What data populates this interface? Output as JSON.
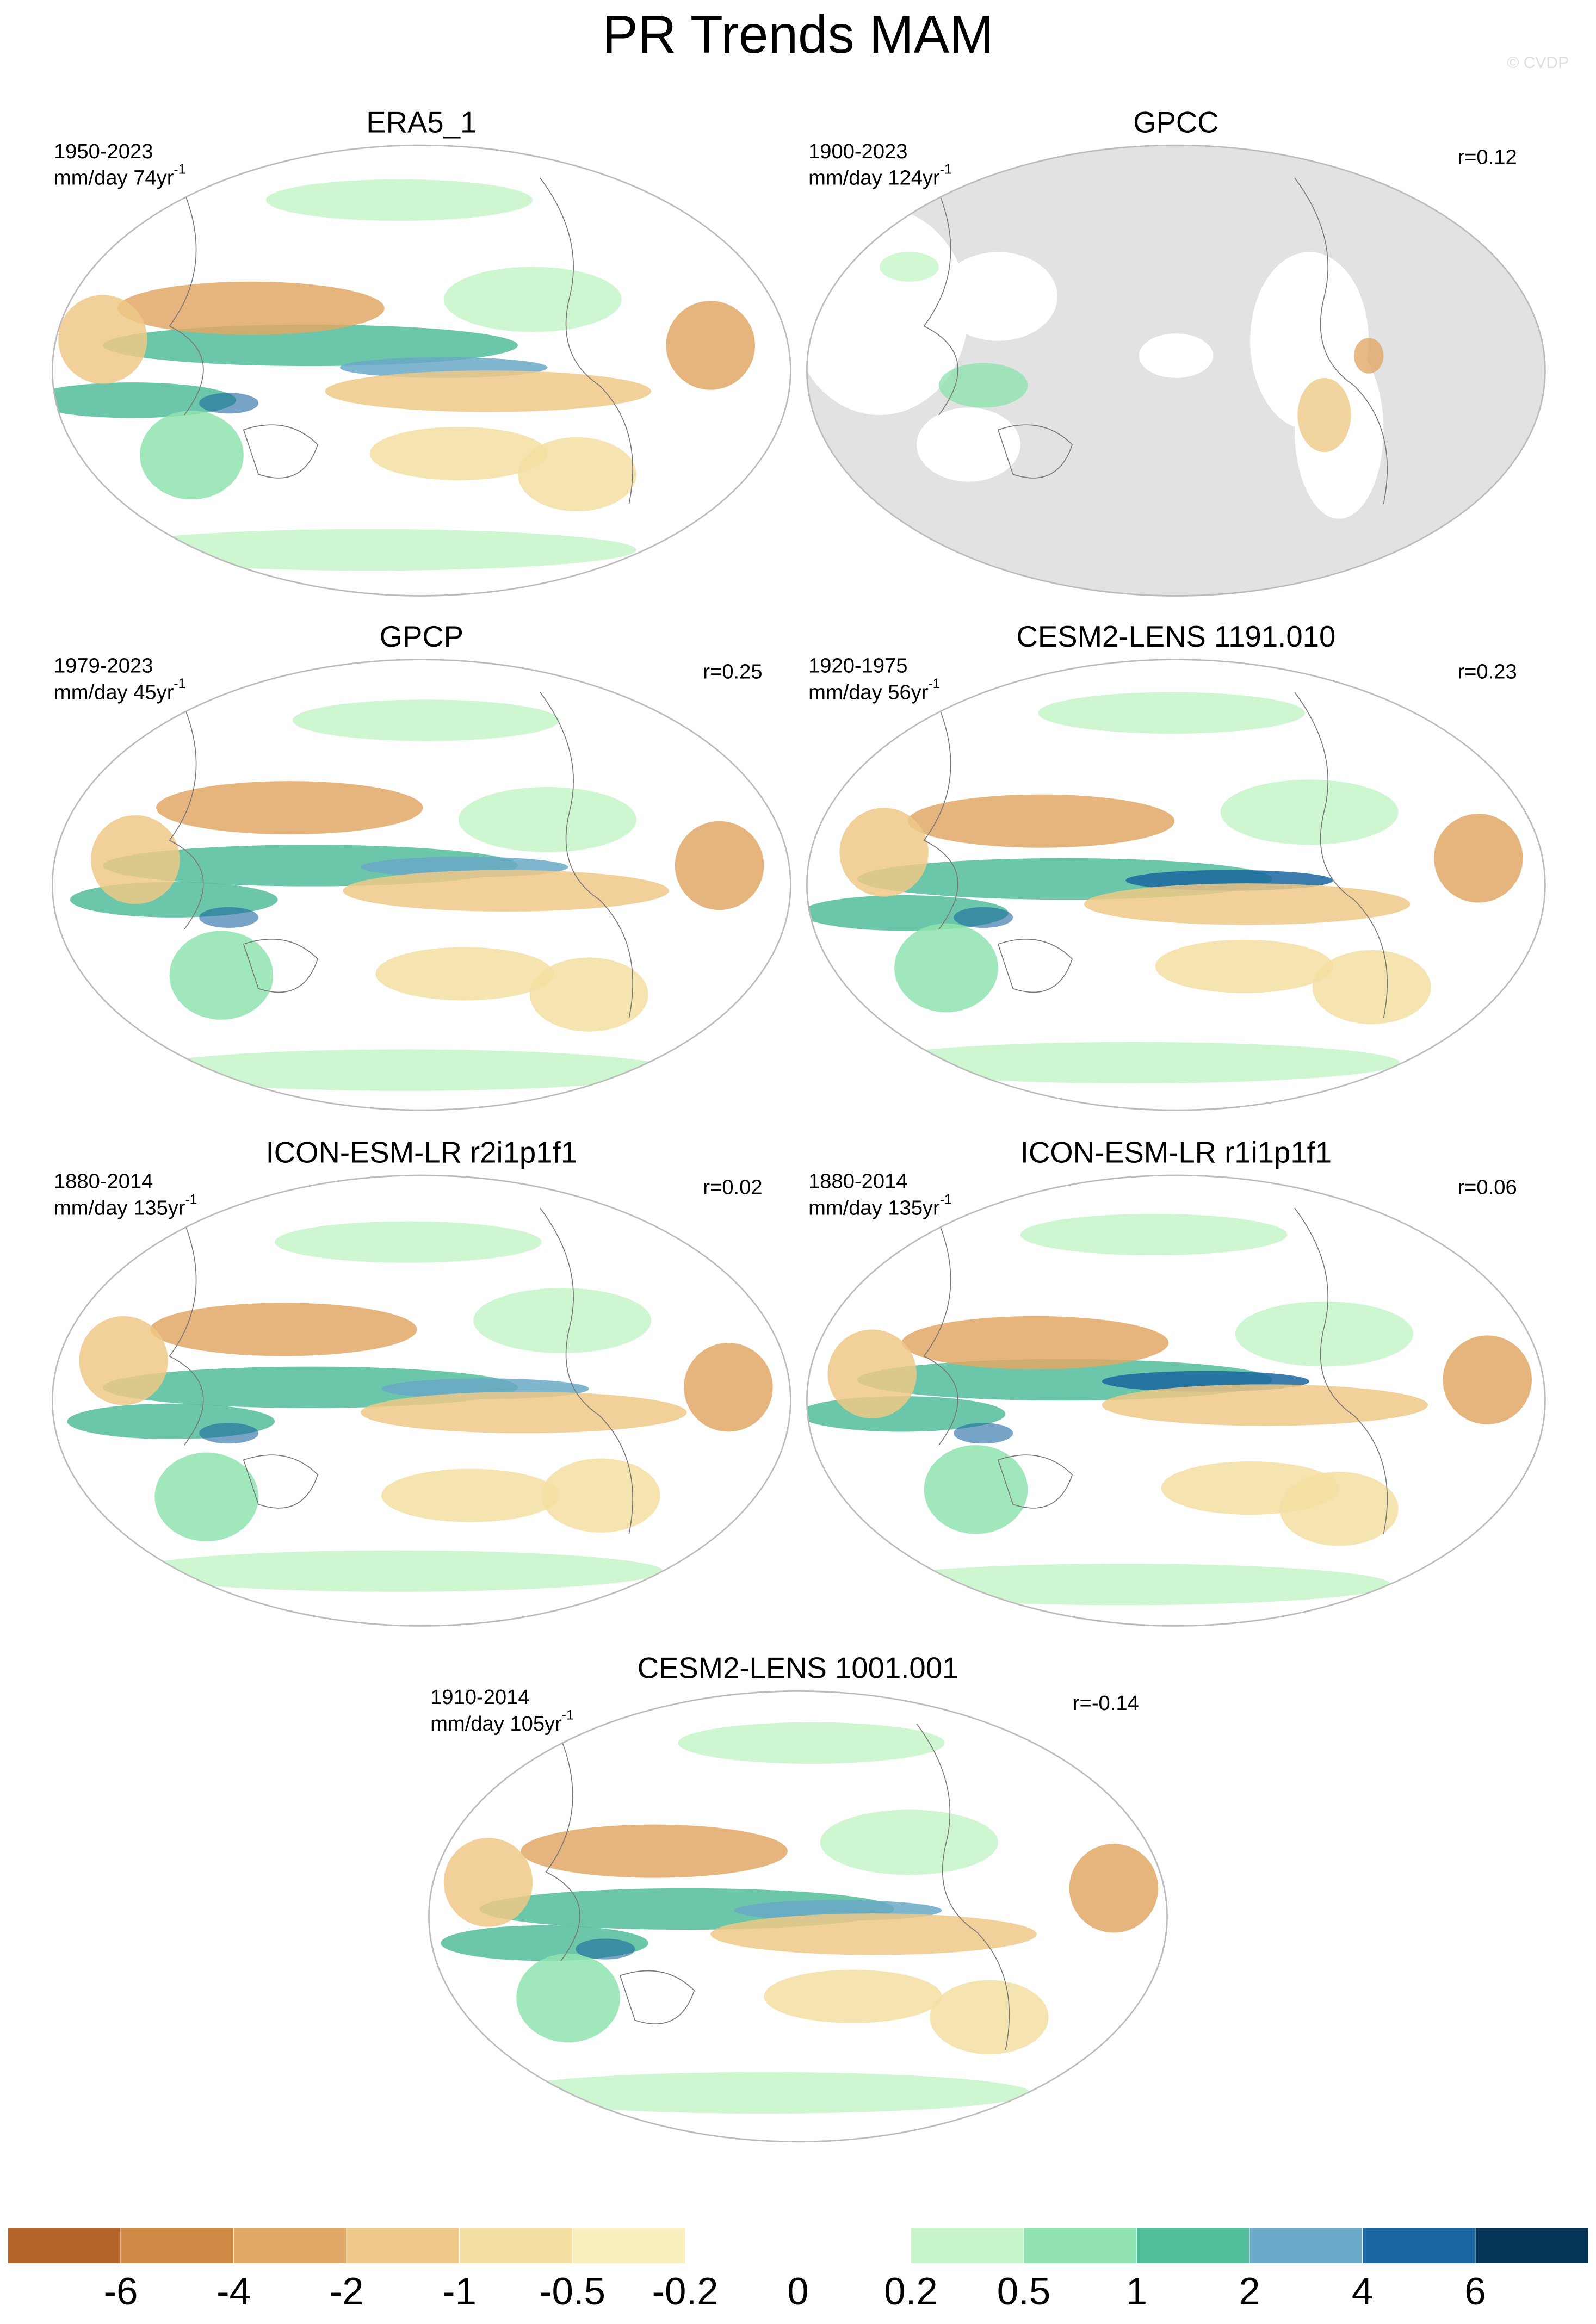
{
  "title": "PR Trends MAM",
  "watermark": "© CVDP",
  "panels": [
    {
      "title": "ERA5_1",
      "period": "1950-2023",
      "units": "mm/day 74yr",
      "units_exp": "-1",
      "r": null
    },
    {
      "title": "GPCC",
      "period": "1900-2023",
      "units": "mm/day 124yr",
      "units_exp": "-1",
      "r": "r=0.12"
    },
    {
      "title": "GPCP",
      "period": "1979-2023",
      "units": "mm/day 45yr",
      "units_exp": "-1",
      "r": "r=0.25"
    },
    {
      "title": "CESM2-LENS 1191.010",
      "period": "1920-1975",
      "units": "mm/day 56yr",
      "units_exp": "-1",
      "r": "r=0.23"
    },
    {
      "title": "ICON-ESM-LR r2i1p1f1",
      "period": "1880-2014",
      "units": "mm/day 135yr",
      "units_exp": "-1",
      "r": "r=0.02"
    },
    {
      "title": "ICON-ESM-LR r1i1p1f1",
      "period": "1880-2014",
      "units": "mm/day 135yr",
      "units_exp": "-1",
      "r": "r=0.06"
    },
    {
      "title": "CESM2-LENS 1001.001",
      "period": "1910-2014",
      "units": "mm/day 105yr",
      "units_exp": "-1",
      "r": "r=-0.14"
    }
  ],
  "colorbar": {
    "colors": [
      "#b5642a",
      "#cf8a45",
      "#e0a866",
      "#efc987",
      "#f3dfa1",
      "#fbf0bd",
      "#ffffff",
      "#ffffff",
      "#c5f5c8",
      "#90e3b0",
      "#52bd9b",
      "#6aa8c8",
      "#1a66a0",
      "#053457"
    ],
    "ticks": [
      -6,
      -4,
      -2,
      -1,
      -0.5,
      -0.2,
      0,
      0.2,
      0.5,
      1,
      2,
      4,
      6
    ]
  }
}
